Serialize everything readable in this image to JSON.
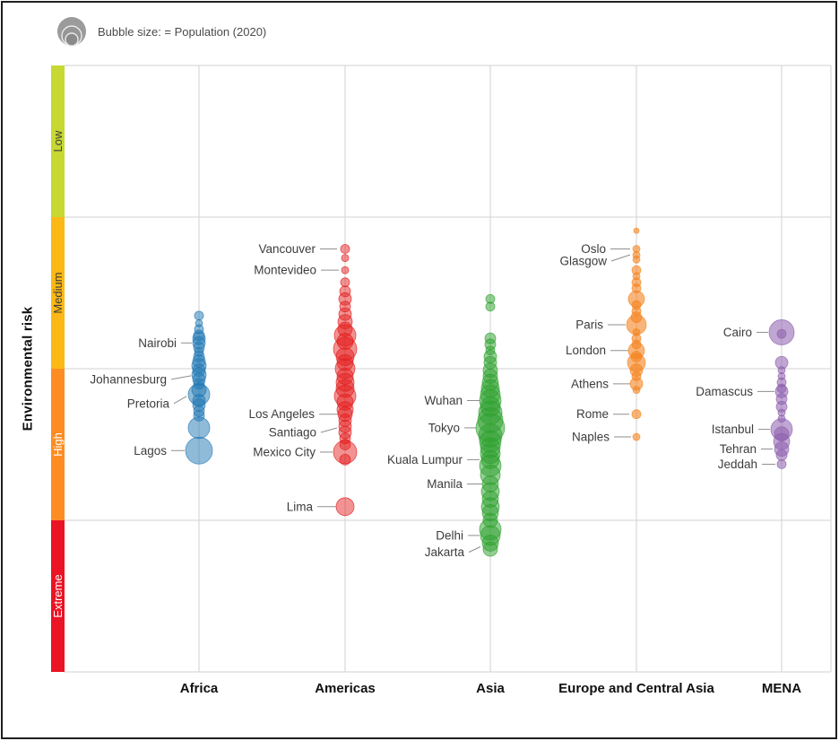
{
  "legend": {
    "icon": "concentric-circles-icon",
    "label": "Bubble size: = Population (2020)"
  },
  "chart_data": {
    "type": "bubble",
    "title": "",
    "ylabel": "Environmental risk",
    "bubble_size_note": "Bubble size: = Population (2020)",
    "y_axis_type": "categorical-bands",
    "grid": true,
    "y_bands": [
      {
        "label": "Low",
        "color": "#c6d831",
        "text_color": "#3d3d3d"
      },
      {
        "label": "Medium",
        "color": "#fcb814",
        "text_color": "#3d3d3d"
      },
      {
        "label": "High",
        "color": "#fd8d22",
        "text_color": "#ffffff"
      },
      {
        "label": "Extreme",
        "color": "#ea1424",
        "text_color": "#ffffff"
      }
    ],
    "categories": [
      "Africa",
      "Americas",
      "Asia",
      "Europe and Central Asia",
      "MENA"
    ],
    "series": [
      {
        "name": "Africa",
        "color": "#2077b4",
        "fill_opacity": 0.5,
        "bubbles": [
          [
            1.65,
            5
          ],
          [
            1.7,
            4
          ],
          [
            1.74,
            5
          ],
          [
            1.78,
            6
          ],
          [
            1.8,
            7
          ],
          [
            1.83,
            7
          ],
          [
            1.86,
            6
          ],
          [
            1.89,
            5
          ],
          [
            1.92,
            6
          ],
          [
            1.95,
            7
          ],
          [
            1.98,
            8
          ],
          [
            2.01,
            7
          ],
          [
            2.04,
            8
          ],
          [
            2.07,
            7
          ],
          [
            2.1,
            6
          ],
          [
            2.14,
            8
          ],
          [
            2.17,
            12
          ],
          [
            2.21,
            7
          ],
          [
            2.24,
            7
          ],
          [
            2.28,
            6
          ],
          [
            2.31,
            6
          ],
          [
            2.39,
            12
          ],
          [
            2.54,
            15
          ]
        ],
        "cities": [
          {
            "name": "Nairobi",
            "risk": 1.83,
            "label_dx": -25,
            "line_dx": -8
          },
          {
            "name": "Johannesburg",
            "risk": 2.07,
            "label_dx": -36,
            "line_dx": -9,
            "dy": -4
          },
          {
            "name": "Pretoria",
            "risk": 2.23,
            "label_dx": -33,
            "line_dx": -14,
            "dy": -8
          },
          {
            "name": "Lagos",
            "risk": 2.54,
            "label_dx": -36,
            "line_dx": -16
          }
        ]
      },
      {
        "name": "Americas",
        "color": "#e31b1c",
        "fill_opacity": 0.48,
        "bubbles": [
          [
            1.21,
            5
          ],
          [
            1.27,
            4
          ],
          [
            1.35,
            4
          ],
          [
            1.43,
            5
          ],
          [
            1.49,
            6
          ],
          [
            1.54,
            7
          ],
          [
            1.59,
            6
          ],
          [
            1.64,
            7
          ],
          [
            1.69,
            8
          ],
          [
            1.74,
            8
          ],
          [
            1.78,
            12
          ],
          [
            1.82,
            9
          ],
          [
            1.87,
            13
          ],
          [
            1.92,
            10
          ],
          [
            1.96,
            9
          ],
          [
            2.0,
            11
          ],
          [
            2.05,
            9
          ],
          [
            2.09,
            10
          ],
          [
            2.13,
            10
          ],
          [
            2.18,
            12
          ],
          [
            2.22,
            9
          ],
          [
            2.27,
            9
          ],
          [
            2.3,
            8
          ],
          [
            2.34,
            7
          ],
          [
            2.38,
            7
          ],
          [
            2.42,
            7
          ],
          [
            2.46,
            6
          ],
          [
            2.5,
            6
          ],
          [
            2.55,
            13
          ],
          [
            2.6,
            6
          ],
          [
            2.91,
            10
          ]
        ],
        "cities": [
          {
            "name": "Vancouver",
            "risk": 1.21,
            "label_dx": -33,
            "line_dx": -9
          },
          {
            "name": "Montevideo",
            "risk": 1.35,
            "label_dx": -32,
            "line_dx": -7
          },
          {
            "name": "Los Angeles",
            "risk": 2.3,
            "label_dx": -34,
            "line_dx": -8
          },
          {
            "name": "Santiago",
            "risk": 2.42,
            "label_dx": -32,
            "line_dx": -9,
            "dy": -5
          },
          {
            "name": "Mexico City",
            "risk": 2.55,
            "label_dx": -33,
            "line_dx": -14
          },
          {
            "name": "Lima",
            "risk": 2.91,
            "label_dx": -36,
            "line_dx": -10
          }
        ]
      },
      {
        "name": "Asia",
        "color": "#2ba02b",
        "fill_opacity": 0.5,
        "bubbles": [
          [
            1.54,
            5
          ],
          [
            1.59,
            5
          ],
          [
            1.8,
            6
          ],
          [
            1.84,
            6
          ],
          [
            1.88,
            5
          ],
          [
            1.92,
            7
          ],
          [
            1.96,
            7
          ],
          [
            2.01,
            8
          ],
          [
            2.05,
            8
          ],
          [
            2.09,
            9
          ],
          [
            2.13,
            10
          ],
          [
            2.17,
            11
          ],
          [
            2.21,
            12
          ],
          [
            2.25,
            11
          ],
          [
            2.29,
            13
          ],
          [
            2.34,
            14
          ],
          [
            2.39,
            16
          ],
          [
            2.44,
            13
          ],
          [
            2.48,
            12
          ],
          [
            2.52,
            11
          ],
          [
            2.56,
            11
          ],
          [
            2.6,
            10
          ],
          [
            2.64,
            12
          ],
          [
            2.7,
            11
          ],
          [
            2.76,
            9
          ],
          [
            2.81,
            10
          ],
          [
            2.86,
            9
          ],
          [
            2.91,
            10
          ],
          [
            2.95,
            9
          ],
          [
            3.0,
            8
          ],
          [
            3.06,
            12
          ],
          [
            3.1,
            11
          ],
          [
            3.15,
            9
          ],
          [
            3.19,
            8
          ]
        ],
        "cities": [
          {
            "name": "Wuhan",
            "risk": 2.21,
            "label_dx": -31,
            "line_dx": -11
          },
          {
            "name": "Tokyo",
            "risk": 2.39,
            "label_dx": -34,
            "line_dx": -16
          },
          {
            "name": "Kuala Lumpur",
            "risk": 2.6,
            "label_dx": -31,
            "line_dx": -12
          },
          {
            "name": "Manila",
            "risk": 2.76,
            "label_dx": -31,
            "line_dx": -9
          },
          {
            "name": "Delhi",
            "risk": 3.1,
            "label_dx": -30,
            "line_dx": -12
          },
          {
            "name": "Jakarta",
            "risk": 3.21,
            "label_dx": -29,
            "line_dx": -11,
            "dy": -6
          }
        ]
      },
      {
        "name": "Europe and Central Asia",
        "color": "#f58420",
        "fill_opacity": 0.6,
        "bubbles": [
          [
            1.09,
            3
          ],
          [
            1.21,
            4
          ],
          [
            1.25,
            4
          ],
          [
            1.28,
            4
          ],
          [
            1.35,
            5
          ],
          [
            1.39,
            4
          ],
          [
            1.43,
            5
          ],
          [
            1.47,
            5
          ],
          [
            1.54,
            9
          ],
          [
            1.58,
            5
          ],
          [
            1.62,
            5
          ],
          [
            1.66,
            6
          ],
          [
            1.71,
            11
          ],
          [
            1.76,
            4
          ],
          [
            1.8,
            5
          ],
          [
            1.84,
            5
          ],
          [
            1.88,
            9
          ],
          [
            1.92,
            6
          ],
          [
            1.96,
            10
          ],
          [
            2.01,
            7
          ],
          [
            2.05,
            5
          ],
          [
            2.1,
            7
          ],
          [
            2.14,
            4
          ],
          [
            2.3,
            5
          ],
          [
            2.45,
            4
          ]
        ],
        "cities": [
          {
            "name": "Oslo",
            "risk": 1.21,
            "label_dx": -34,
            "line_dx": -7
          },
          {
            "name": "Glasgow",
            "risk": 1.29,
            "label_dx": -33,
            "line_dx": -7,
            "dy": -7
          },
          {
            "name": "Paris",
            "risk": 1.71,
            "label_dx": -37,
            "line_dx": -12
          },
          {
            "name": "London",
            "risk": 1.88,
            "label_dx": -34,
            "line_dx": -9
          },
          {
            "name": "Athens",
            "risk": 2.1,
            "label_dx": -31,
            "line_dx": -7
          },
          {
            "name": "Rome",
            "risk": 2.3,
            "label_dx": -31,
            "line_dx": -8
          },
          {
            "name": "Naples",
            "risk": 2.45,
            "label_dx": -30,
            "line_dx": -6
          }
        ]
      },
      {
        "name": "MENA",
        "color": "#8d5fae",
        "fill_opacity": 0.55,
        "bubbles": [
          [
            1.76,
            14
          ],
          [
            1.77,
            5
          ],
          [
            1.96,
            7
          ],
          [
            2.01,
            4
          ],
          [
            2.05,
            4
          ],
          [
            2.09,
            5
          ],
          [
            2.13,
            5
          ],
          [
            2.15,
            7
          ],
          [
            2.2,
            6
          ],
          [
            2.25,
            6
          ],
          [
            2.29,
            4
          ],
          [
            2.33,
            4
          ],
          [
            2.4,
            12
          ],
          [
            2.43,
            8
          ],
          [
            2.48,
            9
          ],
          [
            2.53,
            8
          ],
          [
            2.57,
            6
          ],
          [
            2.63,
            5
          ]
        ],
        "cities": [
          {
            "name": "Cairo",
            "risk": 1.76,
            "label_dx": -33,
            "line_dx": -15
          },
          {
            "name": "Damascus",
            "risk": 2.15,
            "label_dx": -32,
            "line_dx": -8
          },
          {
            "name": "Istanbul",
            "risk": 2.4,
            "label_dx": -31,
            "line_dx": -13
          },
          {
            "name": "Tehran",
            "risk": 2.53,
            "label_dx": -28,
            "line_dx": -10
          },
          {
            "name": "Jeddah",
            "risk": 2.63,
            "label_dx": -27,
            "line_dx": -7
          }
        ]
      }
    ]
  }
}
